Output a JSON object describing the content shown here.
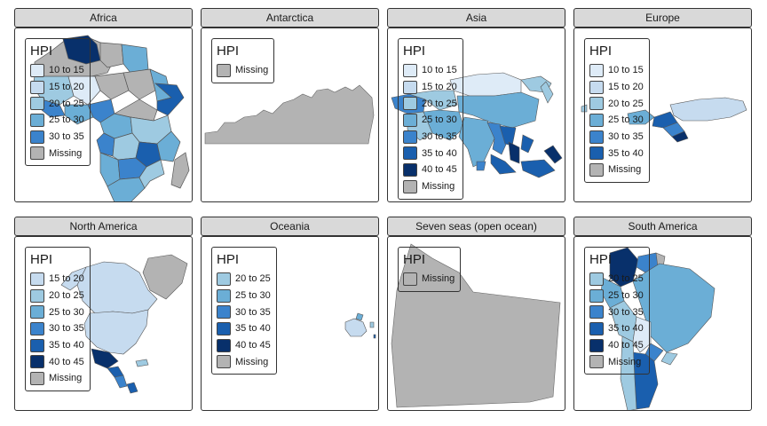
{
  "legend_title": "HPI",
  "colors": {
    "missing": "#b3b3b3",
    "bins": {
      "10 to 15": "#deebf7",
      "15 to 20": "#c6dbef",
      "20 to 25": "#9ecae1",
      "25 to 30": "#6baed6",
      "30 to 35": "#3b83cc",
      "35 to 40": "#1a5fae",
      "40 to 45": "#08306b"
    }
  },
  "panels": [
    {
      "title": "Africa",
      "legend": [
        "10 to 15",
        "15 to 20",
        "20 to 25",
        "25 to 30",
        "30 to 35",
        "Missing"
      ]
    },
    {
      "title": "Antarctica",
      "legend": [
        "Missing"
      ]
    },
    {
      "title": "Asia",
      "legend": [
        "10 to 15",
        "15 to 20",
        "20 to 25",
        "25 to 30",
        "30 to 35",
        "35 to 40",
        "40 to 45",
        "Missing"
      ]
    },
    {
      "title": "Europe",
      "legend": [
        "10 to 15",
        "15 to 20",
        "20 to 25",
        "25 to 30",
        "30 to 35",
        "35 to 40",
        "Missing"
      ]
    },
    {
      "title": "North America",
      "legend": [
        "15 to 20",
        "20 to 25",
        "25 to 30",
        "30 to 35",
        "35 to 40",
        "40 to 45",
        "Missing"
      ]
    },
    {
      "title": "Oceania",
      "legend": [
        "20 to 25",
        "25 to 30",
        "30 to 35",
        "35 to 40",
        "40 to 45",
        "Missing"
      ]
    },
    {
      "title": "Seven seas (open ocean)",
      "legend": [
        "Missing"
      ]
    },
    {
      "title": "South America",
      "legend": [
        "20 to 25",
        "25 to 30",
        "30 to 35",
        "35 to 40",
        "40 to 45",
        "Missing"
      ]
    }
  ]
}
